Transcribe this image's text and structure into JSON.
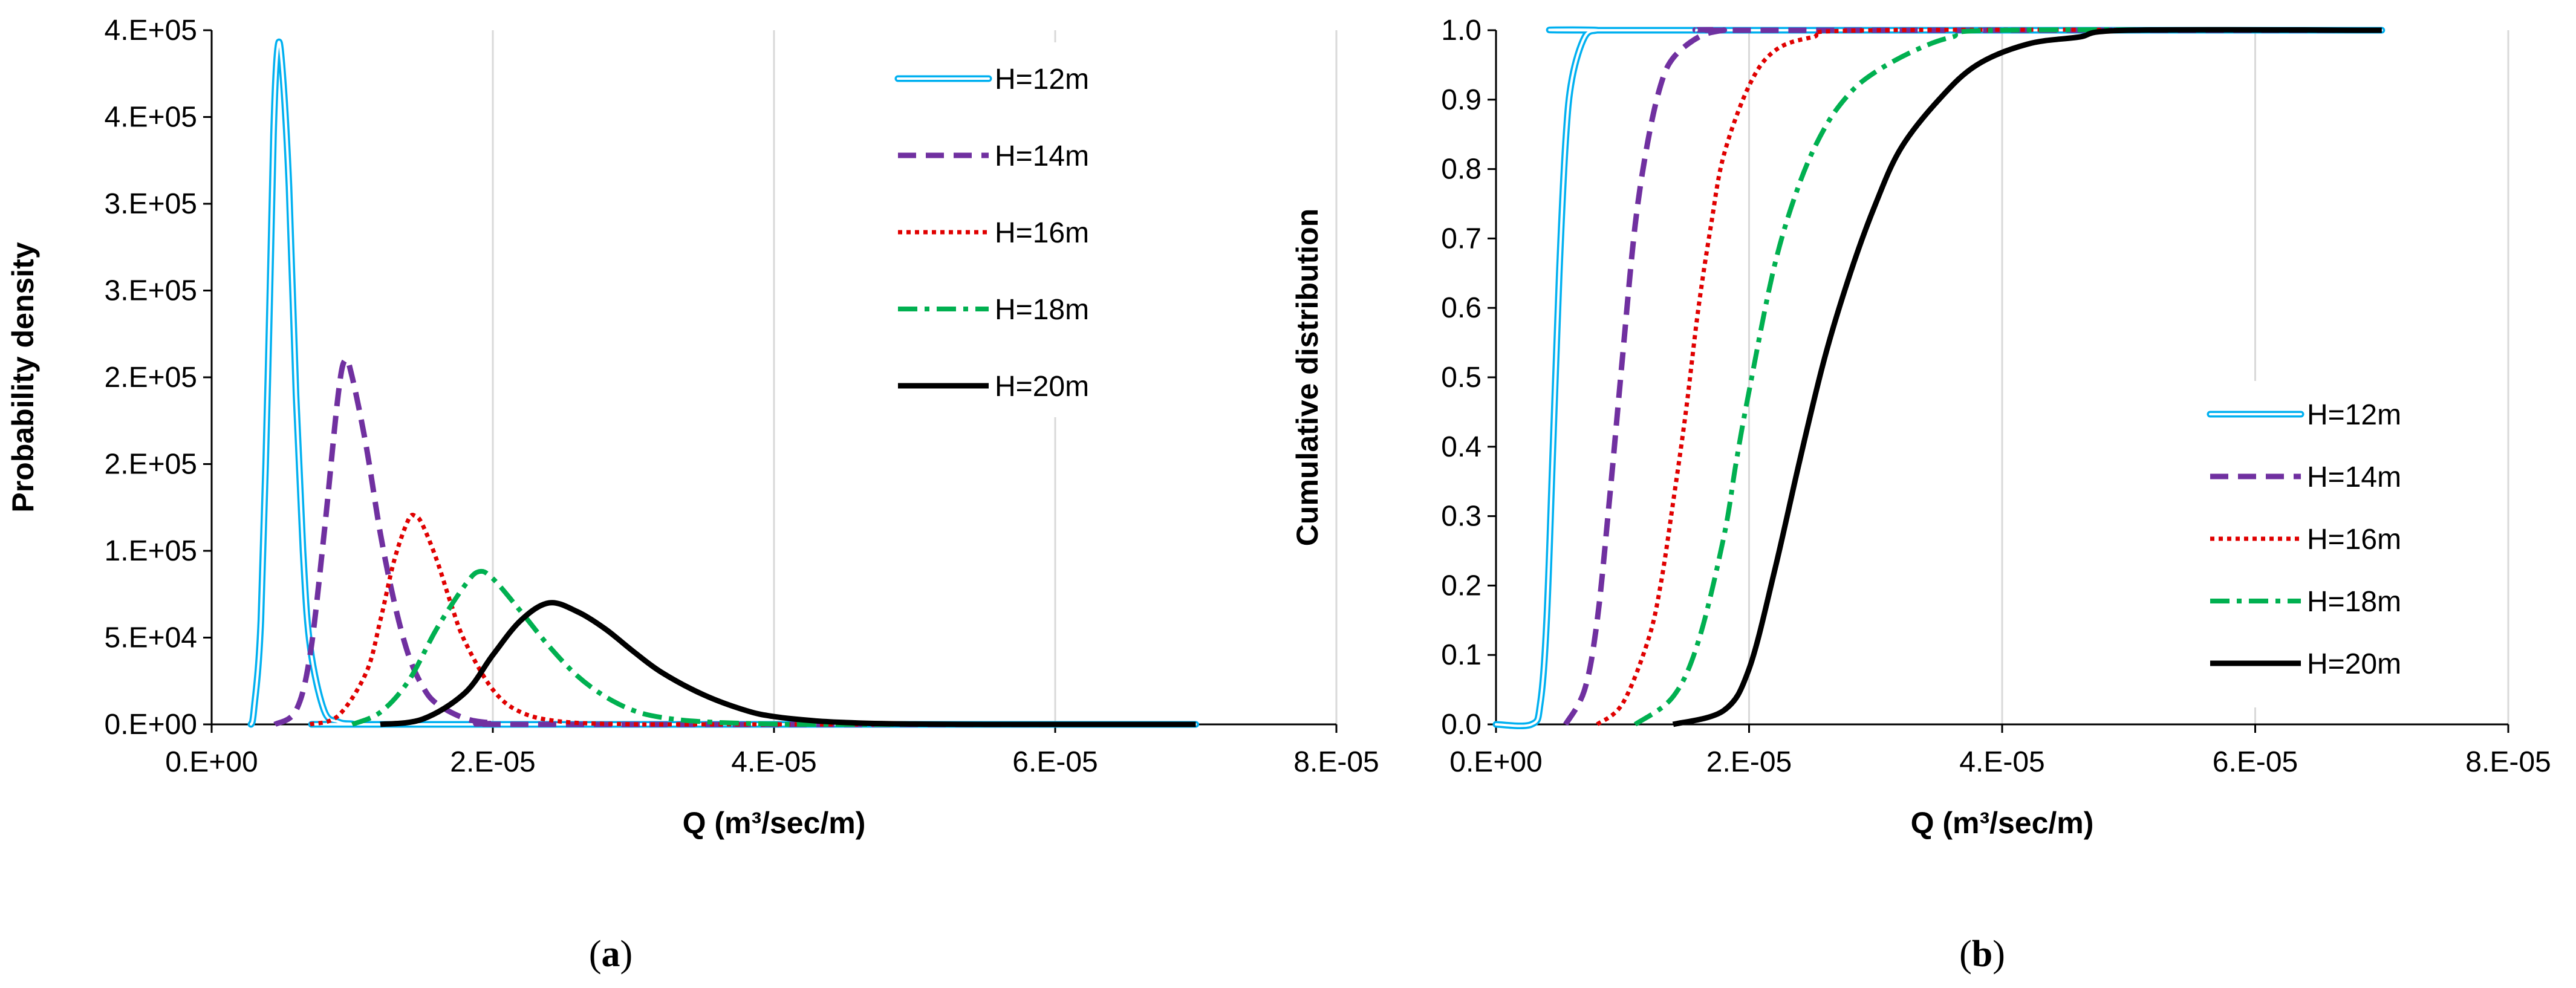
{
  "chart_data": [
    {
      "type": "line",
      "panel_label": "(a)",
      "panel_parts": [
        "(",
        "a",
        ")"
      ],
      "title": "",
      "xlabel": "Q (m³/sec/m)",
      "ylabel": "Probability density",
      "xlim": [
        0,
        8e-05
      ],
      "ylim": [
        0,
        400000
      ],
      "x_ticks": [
        "0.E+00",
        "2.E-05",
        "4.E-05",
        "6.E-05",
        "8.E-05"
      ],
      "y_ticks": [
        "0.E+00",
        "5.E+04",
        "1.E+05",
        "2.E+05",
        "2.E+05",
        "3.E+05",
        "3.E+05",
        "4.E+05",
        "4.E+05"
      ],
      "grid": "vertical",
      "legend": "top-right",
      "series": [
        {
          "name": "H=12m",
          "color": "#00b0f0",
          "style": "double",
          "x": [
            2.8e-06,
            3e-06,
            3.5e-06,
            4e-06,
            4.4e-06,
            4.7e-06,
            5e-06,
            5.5e-06,
            6e-06,
            6.5e-06,
            7e-06,
            8e-06,
            9e-06,
            1e-05,
            1.2e-05,
            7e-05
          ],
          "y": [
            0,
            8000,
            60000,
            200000,
            340000,
            390000,
            380000,
            310000,
            190000,
            100000,
            45000,
            8000,
            1500,
            300,
            0,
            0
          ]
        },
        {
          "name": "H=14m",
          "color": "#7030a0",
          "style": "dash",
          "x": [
            4.5e-06,
            6e-06,
            7e-06,
            8e-06,
            9e-06,
            9.5e-06,
            1e-05,
            1.1e-05,
            1.2e-05,
            1.3e-05,
            1.4e-05,
            1.5e-05,
            1.6e-05,
            1.8e-05,
            2e-05,
            2.3e-05,
            7e-05
          ],
          "y": [
            0,
            8000,
            40000,
            110000,
            190000,
            210000,
            200000,
            160000,
            110000,
            70000,
            40000,
            22000,
            12000,
            3500,
            800,
            0,
            0
          ]
        },
        {
          "name": "H=16m",
          "color": "#e00000",
          "style": "dot",
          "x": [
            7e-06,
            9e-06,
            1.1e-05,
            1.2e-05,
            1.3e-05,
            1.4e-05,
            1.45e-05,
            1.5e-05,
            1.6e-05,
            1.7e-05,
            1.8e-05,
            2e-05,
            2.2e-05,
            2.5e-05,
            3e-05,
            3.5e-05,
            7e-05
          ],
          "y": [
            0,
            5000,
            30000,
            60000,
            95000,
            118000,
            120000,
            115000,
            95000,
            70000,
            48000,
            20000,
            7000,
            1500,
            100,
            0,
            0
          ]
        },
        {
          "name": "H=18m",
          "color": "#00b050",
          "style": "dashdot",
          "x": [
            1e-05,
            1.2e-05,
            1.4e-05,
            1.6e-05,
            1.8e-05,
            1.9e-05,
            2e-05,
            2.2e-05,
            2.4e-05,
            2.6e-05,
            2.8e-05,
            3e-05,
            3.2e-05,
            3.5e-05,
            4e-05,
            4.5e-05,
            7e-05
          ],
          "y": [
            0,
            7000,
            25000,
            55000,
            80000,
            88000,
            84000,
            65000,
            45000,
            28000,
            16000,
            8000,
            4000,
            1500,
            200,
            0,
            0
          ]
        },
        {
          "name": "H=20m",
          "color": "#000000",
          "style": "solid",
          "x": [
            1.2e-05,
            1.5e-05,
            1.8e-05,
            2e-05,
            2.2e-05,
            2.4e-05,
            2.6e-05,
            2.8e-05,
            3e-05,
            3.2e-05,
            3.5e-05,
            3.8e-05,
            4e-05,
            4.3e-05,
            4.6e-05,
            5e-05,
            5.5e-05,
            6e-05,
            7e-05
          ],
          "y": [
            0,
            3000,
            18000,
            40000,
            60000,
            70000,
            65000,
            55000,
            42000,
            30000,
            17000,
            8000,
            4500,
            2000,
            800,
            200,
            0,
            0,
            0
          ]
        }
      ]
    },
    {
      "type": "line",
      "panel_label": "(b)",
      "panel_parts": [
        "(",
        "b",
        ")"
      ],
      "title": "",
      "xlabel": "Q (m³/sec/m)",
      "ylabel": "Cumulative distribution",
      "xlim": [
        0,
        8e-05
      ],
      "ylim": [
        0,
        1
      ],
      "x_ticks": [
        "0.E+00",
        "2.E-05",
        "4.E-05",
        "6.E-05",
        "8.E-05"
      ],
      "y_ticks": [
        "0.0",
        "0.1",
        "0.2",
        "0.3",
        "0.4",
        "0.5",
        "0.6",
        "0.7",
        "0.8",
        "0.9",
        "1.0"
      ],
      "grid": "vertical",
      "legend": "bottom-right",
      "series": [
        {
          "name": "H=12m",
          "color": "#00b0f0",
          "style": "double",
          "x": [
            0,
            2.8e-06,
            3.5e-06,
            4e-06,
            4.5e-06,
            5e-06,
            5.5e-06,
            6e-06,
            7e-06,
            8e-06,
            9e-06,
            7e-05
          ],
          "y": [
            0,
            0,
            0.03,
            0.15,
            0.4,
            0.65,
            0.84,
            0.93,
            0.99,
            1.0,
            1.0,
            1.0
          ]
        },
        {
          "name": "H=14m",
          "color": "#7030a0",
          "style": "dash",
          "x": [
            5.5e-06,
            7e-06,
            8e-06,
            9e-06,
            1e-05,
            1.1e-05,
            1.2e-05,
            1.3e-05,
            1.4e-05,
            1.6e-05,
            1.8e-05,
            2e-05,
            7e-05
          ],
          "y": [
            0,
            0.05,
            0.15,
            0.33,
            0.53,
            0.72,
            0.84,
            0.92,
            0.96,
            0.99,
            1.0,
            1.0,
            1.0
          ]
        },
        {
          "name": "H=16m",
          "color": "#e00000",
          "style": "dot",
          "x": [
            8e-06,
            1e-05,
            1.2e-05,
            1.3e-05,
            1.4e-05,
            1.5e-05,
            1.6e-05,
            1.7e-05,
            1.8e-05,
            2e-05,
            2.2e-05,
            2.5e-05,
            3e-05,
            7e-05
          ],
          "y": [
            0,
            0.03,
            0.12,
            0.2,
            0.32,
            0.45,
            0.6,
            0.72,
            0.82,
            0.92,
            0.97,
            0.99,
            1.0,
            1.0
          ]
        },
        {
          "name": "H=18m",
          "color": "#00b050",
          "style": "dashdot",
          "x": [
            1.1e-05,
            1.4e-05,
            1.6e-05,
            1.8e-05,
            1.9e-05,
            2e-05,
            2.2e-05,
            2.4e-05,
            2.6e-05,
            2.8e-05,
            3e-05,
            3.3e-05,
            3.6e-05,
            4e-05,
            7e-05
          ],
          "y": [
            0,
            0.04,
            0.12,
            0.27,
            0.38,
            0.48,
            0.66,
            0.78,
            0.86,
            0.91,
            0.94,
            0.97,
            0.99,
            1.0,
            1.0
          ]
        },
        {
          "name": "H=20m",
          "color": "#000000",
          "style": "solid",
          "x": [
            1.4e-05,
            1.8e-05,
            2e-05,
            2.2e-05,
            2.4e-05,
            2.6e-05,
            2.8e-05,
            3e-05,
            3.2e-05,
            3.5e-05,
            3.8e-05,
            4.2e-05,
            4.6e-05,
            5e-05,
            7e-05
          ],
          "y": [
            0,
            0.02,
            0.08,
            0.22,
            0.38,
            0.53,
            0.65,
            0.75,
            0.83,
            0.9,
            0.95,
            0.98,
            0.99,
            1.0,
            1.0
          ]
        }
      ]
    }
  ]
}
